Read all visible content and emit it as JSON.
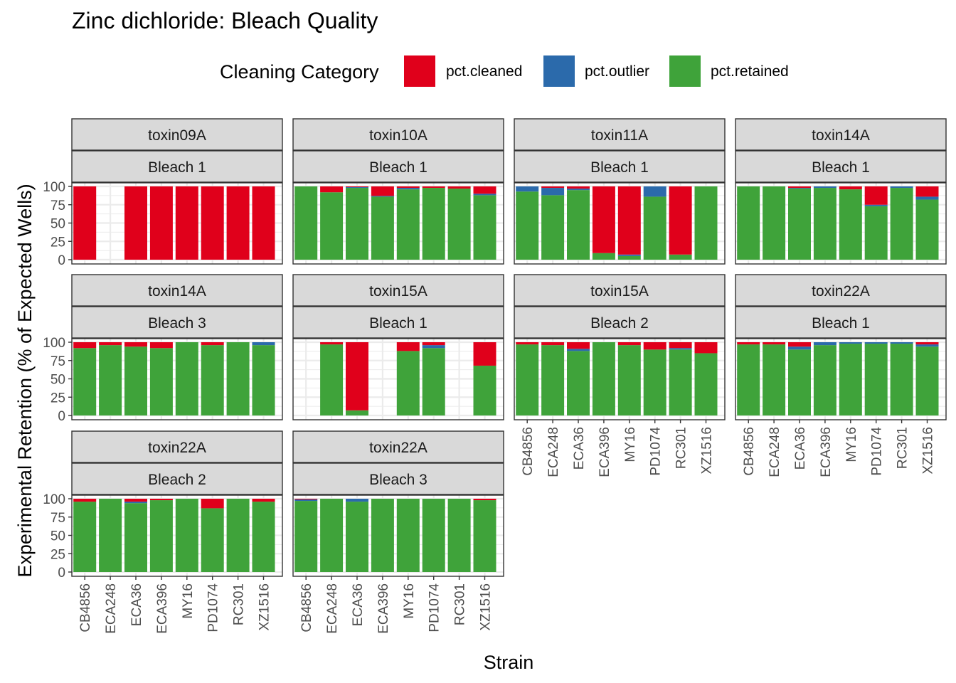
{
  "chart_data": {
    "type": "bar",
    "stacked": true,
    "title": "Zinc dichloride: Bleach Quality",
    "xlabel": "Strain",
    "ylabel": "Experimental Retention (% of Expected Wells)",
    "ylim": [
      0,
      100
    ],
    "yticks": [
      0,
      25,
      50,
      75,
      100
    ],
    "legend": {
      "title": "Cleaning Category",
      "position": "top",
      "entries": [
        {
          "key": "pct.cleaned",
          "color": "#e0001b"
        },
        {
          "key": "pct.outlier",
          "color": "#2b6aab"
        },
        {
          "key": "pct.retained",
          "color": "#3fa33a"
        }
      ]
    },
    "categories": [
      "CB4856",
      "ECA248",
      "ECA36",
      "ECA396",
      "MY16",
      "PD1074",
      "RC301",
      "XZ1516"
    ],
    "stack_order": [
      "retained",
      "outlier",
      "cleaned"
    ],
    "panels": [
      {
        "assay": "toxin09A",
        "bleach": "Bleach 1",
        "retained": [
          0,
          null,
          0,
          0,
          0,
          0,
          0,
          0
        ],
        "outlier": [
          0,
          null,
          0,
          0,
          0,
          0,
          0,
          0
        ],
        "cleaned": [
          100,
          null,
          100,
          100,
          100,
          100,
          100,
          100
        ]
      },
      {
        "assay": "toxin10A",
        "bleach": "Bleach 1",
        "retained": [
          100,
          92,
          98,
          86,
          96,
          98,
          97,
          88
        ],
        "outlier": [
          0,
          0,
          1,
          1,
          2,
          0,
          0,
          2
        ],
        "cleaned": [
          0,
          8,
          1,
          13,
          2,
          2,
          3,
          10
        ]
      },
      {
        "assay": "toxin11A",
        "bleach": "Bleach 1",
        "retained": [
          93,
          88,
          95,
          9,
          5,
          86,
          7,
          100
        ],
        "outlier": [
          7,
          10,
          2,
          0,
          2,
          14,
          0,
          0
        ],
        "cleaned": [
          0,
          2,
          3,
          91,
          93,
          0,
          93,
          0
        ]
      },
      {
        "assay": "toxin14A",
        "bleach": "Bleach 1",
        "retained": [
          100,
          100,
          97,
          98,
          96,
          73,
          98,
          82
        ],
        "outlier": [
          0,
          0,
          1,
          2,
          0,
          2,
          2,
          4
        ],
        "cleaned": [
          0,
          0,
          2,
          0,
          4,
          25,
          0,
          14
        ]
      },
      {
        "assay": "toxin14A",
        "bleach": "Bleach 3",
        "retained": [
          92,
          96,
          94,
          92,
          100,
          96,
          100,
          96
        ],
        "outlier": [
          0,
          0,
          0,
          0,
          0,
          0,
          0,
          4
        ],
        "cleaned": [
          8,
          4,
          6,
          8,
          0,
          4,
          0,
          0
        ]
      },
      {
        "assay": "toxin15A",
        "bleach": "Bleach 1",
        "retained": [
          null,
          97,
          7,
          null,
          88,
          92,
          null,
          68
        ],
        "outlier": [
          null,
          0,
          0,
          null,
          0,
          4,
          null,
          0
        ],
        "cleaned": [
          null,
          3,
          93,
          null,
          12,
          4,
          null,
          32
        ]
      },
      {
        "assay": "toxin15A",
        "bleach": "Bleach 2",
        "retained": [
          97,
          96,
          88,
          100,
          96,
          90,
          90,
          85
        ],
        "outlier": [
          0,
          0,
          3,
          0,
          0,
          0,
          2,
          0
        ],
        "cleaned": [
          3,
          4,
          9,
          0,
          4,
          10,
          8,
          15
        ]
      },
      {
        "assay": "toxin22A",
        "bleach": "Bleach 1",
        "retained": [
          97,
          97,
          90,
          96,
          98,
          98,
          98,
          94
        ],
        "outlier": [
          0,
          0,
          4,
          4,
          2,
          2,
          2,
          3
        ],
        "cleaned": [
          3,
          3,
          6,
          0,
          0,
          0,
          0,
          3
        ]
      },
      {
        "assay": "toxin22A",
        "bleach": "Bleach 2",
        "retained": [
          96,
          100,
          94,
          98,
          100,
          87,
          100,
          96
        ],
        "outlier": [
          0,
          0,
          2,
          0,
          0,
          0,
          0,
          0
        ],
        "cleaned": [
          4,
          0,
          4,
          2,
          0,
          13,
          0,
          4
        ]
      },
      {
        "assay": "toxin22A",
        "bleach": "Bleach 3",
        "retained": [
          97,
          100,
          96,
          100,
          100,
          100,
          100,
          98
        ],
        "outlier": [
          2,
          0,
          4,
          0,
          0,
          0,
          0,
          0
        ],
        "cleaned": [
          1,
          0,
          0,
          0,
          0,
          0,
          0,
          2
        ]
      }
    ]
  }
}
